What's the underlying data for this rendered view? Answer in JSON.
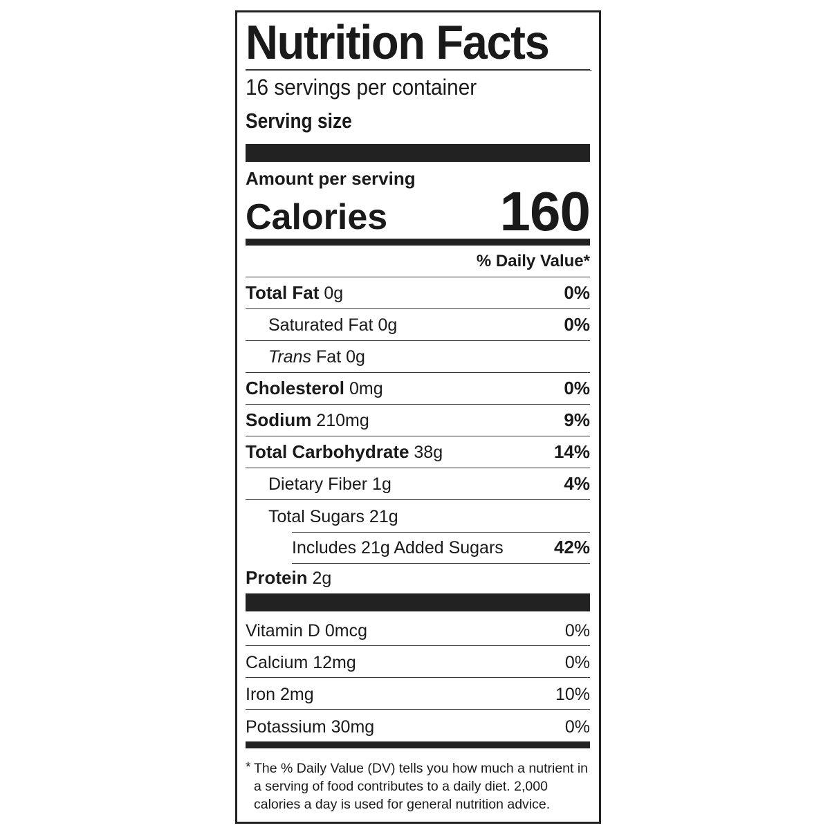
{
  "title": "Nutrition Facts",
  "servings_per_container": "16 servings per container",
  "serving_size_label": "Serving size",
  "amount_per_serving": "Amount per serving",
  "calories_label": "Calories",
  "calories_value": "160",
  "daily_value_header": "% Daily Value*",
  "nutrients": [
    {
      "name": "Total Fat",
      "amount": "0g",
      "dv": "0%"
    },
    {
      "name": "Saturated Fat",
      "amount": "0g",
      "dv": "0%"
    },
    {
      "name_italic": "Trans",
      "name": "Fat",
      "amount": "0g",
      "dv": ""
    },
    {
      "name": "Cholesterol",
      "amount": "0mg",
      "dv": "0%"
    },
    {
      "name": "Sodium",
      "amount": "210mg",
      "dv": "9%"
    },
    {
      "name": "Total Carbohydrate",
      "amount": "38g",
      "dv": "14%"
    },
    {
      "name": "Dietary Fiber",
      "amount": "1g",
      "dv": "4%"
    },
    {
      "name": "Total Sugars",
      "amount": "21g",
      "dv": ""
    },
    {
      "name": "Includes 21g Added Sugars",
      "amount": "",
      "dv": "42%"
    },
    {
      "name": "Protein",
      "amount": "2g",
      "dv": ""
    }
  ],
  "vitamins": [
    {
      "label": "Vitamin D 0mcg",
      "dv": "0%"
    },
    {
      "label": "Calcium 12mg",
      "dv": "0%"
    },
    {
      "label": "Iron 2mg",
      "dv": "10%"
    },
    {
      "label": "Potassium 30mg",
      "dv": "0%"
    }
  ],
  "footnote_star": "*",
  "footnote": "The % Daily Value (DV) tells you how much a nutrient in a serving of food contributes to a daily diet. 2,000 calories a day is used for general nutrition advice."
}
